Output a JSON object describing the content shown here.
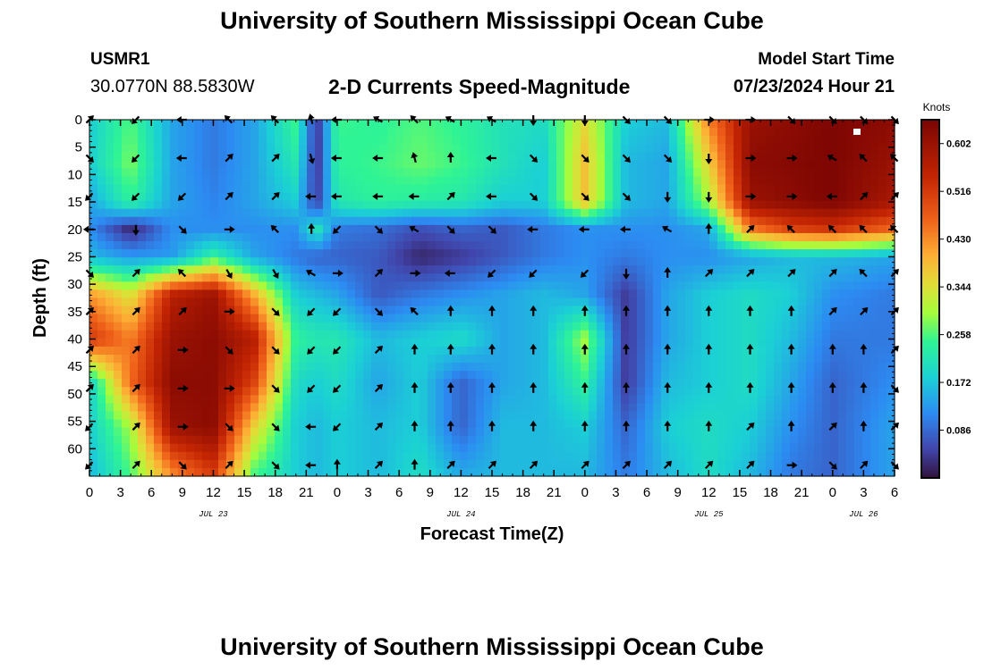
{
  "header": {
    "title_top": "University of Southern Mississippi Ocean Cube",
    "station": "USMR1",
    "coordinates": "30.0770N  88.5830W",
    "subtitle": "2-D Currents Speed-Magnitude",
    "model_start_label": "Model Start Time",
    "model_start_value": "07/23/2024 Hour 21",
    "title_bottom": "University of Southern Mississippi Ocean Cube"
  },
  "chart_data": {
    "type": "heatmap",
    "title": "2-D Currents Speed-Magnitude",
    "xlabel": "Forecast Time(Z)",
    "ylabel": "Depth (ft)",
    "x_start_hour": 0,
    "x_end_hour": 78,
    "xlim": [
      0,
      78
    ],
    "ylim": [
      0,
      65
    ],
    "x_ticks": [
      {
        "hour": 0,
        "label": "0"
      },
      {
        "hour": 3,
        "label": "3"
      },
      {
        "hour": 6,
        "label": "6"
      },
      {
        "hour": 9,
        "label": "9"
      },
      {
        "hour": 12,
        "label": "12"
      },
      {
        "hour": 15,
        "label": "15"
      },
      {
        "hour": 18,
        "label": "18"
      },
      {
        "hour": 21,
        "label": "21"
      },
      {
        "hour": 24,
        "label": "0"
      },
      {
        "hour": 27,
        "label": "3"
      },
      {
        "hour": 30,
        "label": "6"
      },
      {
        "hour": 33,
        "label": "9"
      },
      {
        "hour": 36,
        "label": "12"
      },
      {
        "hour": 39,
        "label": "15"
      },
      {
        "hour": 42,
        "label": "18"
      },
      {
        "hour": 45,
        "label": "21"
      },
      {
        "hour": 48,
        "label": "0"
      },
      {
        "hour": 51,
        "label": "3"
      },
      {
        "hour": 54,
        "label": "6"
      },
      {
        "hour": 57,
        "label": "9"
      },
      {
        "hour": 60,
        "label": "12"
      },
      {
        "hour": 63,
        "label": "15"
      },
      {
        "hour": 66,
        "label": "18"
      },
      {
        "hour": 69,
        "label": "21"
      },
      {
        "hour": 72,
        "label": "0"
      },
      {
        "hour": 75,
        "label": "3"
      },
      {
        "hour": 78,
        "label": "6"
      }
    ],
    "day_labels": [
      {
        "hour": 12,
        "label": "JUL 23"
      },
      {
        "hour": 36,
        "label": "JUL 24"
      },
      {
        "hour": 60,
        "label": "JUL 25"
      },
      {
        "hour": 75,
        "label": "JUL 26"
      }
    ],
    "y_ticks": [
      0,
      5,
      10,
      15,
      20,
      25,
      30,
      35,
      40,
      45,
      50,
      55,
      60
    ],
    "colorbar": {
      "title": "Knots",
      "min": 0.0,
      "max": 0.645,
      "tick_values": [
        0.086,
        0.172,
        0.258,
        0.344,
        0.43,
        0.516,
        0.602
      ],
      "tick_labels": [
        "0.086",
        "0.172",
        "0.258",
        "0.344",
        "0.430",
        "0.516",
        "0.602"
      ]
    },
    "speed_field": {
      "times": [
        0,
        4,
        8,
        12,
        16,
        20,
        22,
        24,
        28,
        32,
        36,
        40,
        44,
        48,
        52,
        56,
        60,
        64,
        68,
        72,
        78
      ],
      "depths": [
        0,
        8,
        15,
        20,
        25,
        32,
        40,
        48,
        56,
        64
      ],
      "values_knots": [
        [
          0.18,
          0.26,
          0.14,
          0.1,
          0.14,
          0.25,
          0.03,
          0.25,
          0.24,
          0.26,
          0.24,
          0.21,
          0.2,
          0.35,
          0.18,
          0.16,
          0.44,
          0.6,
          0.62,
          0.64,
          0.62
        ],
        [
          0.18,
          0.28,
          0.14,
          0.1,
          0.14,
          0.22,
          0.03,
          0.24,
          0.25,
          0.27,
          0.25,
          0.21,
          0.18,
          0.38,
          0.16,
          0.14,
          0.36,
          0.62,
          0.63,
          0.64,
          0.6
        ],
        [
          0.14,
          0.24,
          0.14,
          0.11,
          0.14,
          0.18,
          0.04,
          0.22,
          0.24,
          0.23,
          0.22,
          0.18,
          0.18,
          0.38,
          0.16,
          0.14,
          0.3,
          0.6,
          0.62,
          0.64,
          0.58
        ],
        [
          0.12,
          0.02,
          0.12,
          0.12,
          0.12,
          0.12,
          0.22,
          0.1,
          0.09,
          0.06,
          0.08,
          0.07,
          0.1,
          0.12,
          0.12,
          0.12,
          0.14,
          0.44,
          0.5,
          0.52,
          0.46
        ],
        [
          0.16,
          0.13,
          0.13,
          0.24,
          0.14,
          0.1,
          0.08,
          0.08,
          0.07,
          0.02,
          0.04,
          0.07,
          0.1,
          0.12,
          0.1,
          0.12,
          0.12,
          0.14,
          0.16,
          0.16,
          0.14
        ],
        [
          0.42,
          0.34,
          0.56,
          0.6,
          0.4,
          0.18,
          0.16,
          0.14,
          0.07,
          0.1,
          0.12,
          0.14,
          0.16,
          0.14,
          0.04,
          0.14,
          0.18,
          0.2,
          0.18,
          0.12,
          0.1
        ],
        [
          0.52,
          0.44,
          0.6,
          0.62,
          0.56,
          0.24,
          0.22,
          0.22,
          0.16,
          0.18,
          0.2,
          0.14,
          0.16,
          0.3,
          0.04,
          0.14,
          0.18,
          0.2,
          0.16,
          0.1,
          0.1
        ],
        [
          0.18,
          0.46,
          0.62,
          0.62,
          0.5,
          0.2,
          0.18,
          0.2,
          0.14,
          0.18,
          0.08,
          0.14,
          0.16,
          0.24,
          0.04,
          0.16,
          0.18,
          0.2,
          0.14,
          0.08,
          0.12
        ],
        [
          0.18,
          0.3,
          0.6,
          0.62,
          0.36,
          0.18,
          0.16,
          0.18,
          0.16,
          0.18,
          0.08,
          0.16,
          0.16,
          0.18,
          0.08,
          0.18,
          0.2,
          0.18,
          0.12,
          0.08,
          0.14
        ],
        [
          0.16,
          0.26,
          0.44,
          0.52,
          0.26,
          0.18,
          0.16,
          0.18,
          0.16,
          0.2,
          0.14,
          0.16,
          0.16,
          0.16,
          0.1,
          0.16,
          0.2,
          0.16,
          0.1,
          0.08,
          0.14
        ]
      ]
    },
    "vector_grid": {
      "times": [
        0,
        4.5,
        9,
        13.5,
        18,
        21.5,
        24,
        28,
        31.5,
        35,
        39,
        43,
        48,
        52,
        56,
        60,
        64,
        68,
        72,
        75,
        78
      ],
      "depths": [
        0,
        7,
        14,
        20,
        28,
        35,
        42,
        49,
        56,
        63
      ],
      "directions_deg": [
        [
          45,
          225,
          270,
          315,
          315,
          345,
          270,
          300,
          315,
          300,
          300,
          180,
          180,
          135,
          135,
          90,
          90,
          135,
          135,
          135,
          135
        ],
        [
          135,
          225,
          270,
          45,
          45,
          165,
          270,
          270,
          345,
          0,
          270,
          135,
          135,
          135,
          135,
          180,
          90,
          90,
          300,
          315,
          315
        ],
        [
          225,
          225,
          225,
          45,
          45,
          270,
          270,
          270,
          270,
          45,
          270,
          135,
          135,
          135,
          180,
          180,
          90,
          90,
          270,
          45,
          45
        ],
        [
          270,
          180,
          135,
          90,
          315,
          0,
          225,
          135,
          300,
          135,
          135,
          270,
          270,
          270,
          300,
          0,
          45,
          315,
          315,
          315,
          315
        ],
        [
          135,
          45,
          315,
          150,
          150,
          300,
          90,
          45,
          90,
          270,
          225,
          225,
          225,
          180,
          0,
          45,
          45,
          45,
          45,
          315,
          45
        ],
        [
          45,
          45,
          45,
          90,
          135,
          225,
          225,
          135,
          315,
          0,
          0,
          0,
          0,
          0,
          0,
          0,
          0,
          0,
          45,
          45,
          45
        ],
        [
          45,
          45,
          90,
          135,
          135,
          225,
          225,
          45,
          0,
          0,
          0,
          0,
          0,
          0,
          0,
          0,
          0,
          0,
          0,
          0,
          45
        ],
        [
          45,
          45,
          90,
          90,
          135,
          225,
          225,
          45,
          0,
          0,
          0,
          0,
          0,
          0,
          0,
          0,
          0,
          0,
          0,
          0,
          135
        ],
        [
          225,
          45,
          90,
          135,
          135,
          270,
          225,
          45,
          0,
          0,
          0,
          0,
          0,
          0,
          0,
          0,
          45,
          0,
          45,
          0,
          45
        ],
        [
          225,
          45,
          135,
          45,
          135,
          270,
          0,
          45,
          0,
          45,
          45,
          45,
          45,
          45,
          45,
          45,
          45,
          90,
          135,
          45,
          135
        ]
      ]
    }
  }
}
